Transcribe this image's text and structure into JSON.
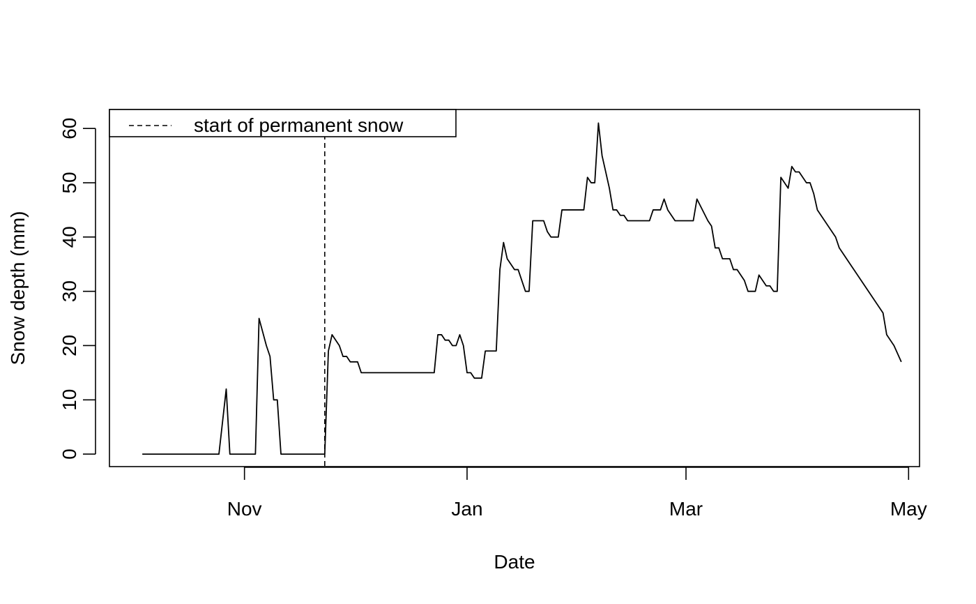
{
  "chart_data": {
    "type": "line",
    "title": "",
    "xlabel": "Date",
    "ylabel": "Snow depth (mm)",
    "ylim": [
      -2.3,
      63.5
    ],
    "xlim": [
      "2015-09-25",
      "2016-05-04"
    ],
    "x_ticks": [
      {
        "date": "2015-11-01",
        "label": "Nov"
      },
      {
        "date": "2016-01-01",
        "label": "Jan"
      },
      {
        "date": "2016-03-01",
        "label": "Mar"
      },
      {
        "date": "2016-05-01",
        "label": "May"
      }
    ],
    "y_ticks": [
      0,
      10,
      20,
      30,
      40,
      50,
      60
    ],
    "grid": false,
    "legend": {
      "position": "top-left",
      "entries": [
        {
          "label": "start of permanent snow",
          "style": "dashed"
        }
      ]
    },
    "vline": {
      "date": "2015-11-23",
      "label": "start of permanent snow"
    },
    "series": [
      {
        "color": "#000000",
        "points": [
          [
            "2015-10-04",
            0
          ],
          [
            "2015-10-25",
            0
          ],
          [
            "2015-10-27",
            12
          ],
          [
            "2015-10-28",
            0
          ],
          [
            "2015-11-04",
            0
          ],
          [
            "2015-11-05",
            25
          ],
          [
            "2015-11-07",
            20
          ],
          [
            "2015-11-08",
            18
          ],
          [
            "2015-11-09",
            10
          ],
          [
            "2015-11-10",
            10
          ],
          [
            "2015-11-11",
            0
          ],
          [
            "2015-11-23",
            0
          ],
          [
            "2015-11-24",
            19
          ],
          [
            "2015-11-25",
            22
          ],
          [
            "2015-11-27",
            20
          ],
          [
            "2015-11-28",
            18
          ],
          [
            "2015-11-29",
            18
          ],
          [
            "2015-11-30",
            17
          ],
          [
            "2015-12-02",
            17
          ],
          [
            "2015-12-03",
            15
          ],
          [
            "2015-12-23",
            15
          ],
          [
            "2015-12-24",
            22
          ],
          [
            "2015-12-25",
            22
          ],
          [
            "2015-12-26",
            21
          ],
          [
            "2015-12-27",
            21
          ],
          [
            "2015-12-28",
            20
          ],
          [
            "2015-12-29",
            20
          ],
          [
            "2015-12-30",
            22
          ],
          [
            "2015-12-31",
            20
          ],
          [
            "2016-01-01",
            15
          ],
          [
            "2016-01-02",
            15
          ],
          [
            "2016-01-03",
            14
          ],
          [
            "2016-01-05",
            14
          ],
          [
            "2016-01-06",
            19
          ],
          [
            "2016-01-09",
            19
          ],
          [
            "2016-01-10",
            34
          ],
          [
            "2016-01-11",
            39
          ],
          [
            "2016-01-12",
            36
          ],
          [
            "2016-01-14",
            34
          ],
          [
            "2016-01-15",
            34
          ],
          [
            "2016-01-17",
            30
          ],
          [
            "2016-01-18",
            30
          ],
          [
            "2016-01-19",
            43
          ],
          [
            "2016-01-22",
            43
          ],
          [
            "2016-01-23",
            41
          ],
          [
            "2016-01-24",
            40
          ],
          [
            "2016-01-26",
            40
          ],
          [
            "2016-01-27",
            45
          ],
          [
            "2016-02-02",
            45
          ],
          [
            "2016-02-03",
            51
          ],
          [
            "2016-02-04",
            50
          ],
          [
            "2016-02-05",
            50
          ],
          [
            "2016-02-06",
            61
          ],
          [
            "2016-02-07",
            55
          ],
          [
            "2016-02-08",
            52
          ],
          [
            "2016-02-09",
            49
          ],
          [
            "2016-02-10",
            45
          ],
          [
            "2016-02-11",
            45
          ],
          [
            "2016-02-12",
            44
          ],
          [
            "2016-02-13",
            44
          ],
          [
            "2016-02-14",
            43
          ],
          [
            "2016-02-20",
            43
          ],
          [
            "2016-02-21",
            45
          ],
          [
            "2016-02-22",
            45
          ],
          [
            "2016-02-23",
            45
          ],
          [
            "2016-02-24",
            47
          ],
          [
            "2016-02-25",
            45
          ],
          [
            "2016-02-27",
            43
          ],
          [
            "2016-02-29",
            43
          ],
          [
            "2016-03-03",
            43
          ],
          [
            "2016-03-04",
            47
          ],
          [
            "2016-03-07",
            43
          ],
          [
            "2016-03-08",
            42
          ],
          [
            "2016-03-09",
            38
          ],
          [
            "2016-03-10",
            38
          ],
          [
            "2016-03-11",
            36
          ],
          [
            "2016-03-13",
            36
          ],
          [
            "2016-03-14",
            34
          ],
          [
            "2016-03-15",
            34
          ],
          [
            "2016-03-17",
            32
          ],
          [
            "2016-03-18",
            30
          ],
          [
            "2016-03-20",
            30
          ],
          [
            "2016-03-21",
            33
          ],
          [
            "2016-03-22",
            32
          ],
          [
            "2016-03-23",
            31
          ],
          [
            "2016-03-24",
            31
          ],
          [
            "2016-03-25",
            30
          ],
          [
            "2016-03-26",
            30
          ],
          [
            "2016-03-27",
            51
          ],
          [
            "2016-03-29",
            49
          ],
          [
            "2016-03-30",
            53
          ],
          [
            "2016-03-31",
            52
          ],
          [
            "2016-04-01",
            52
          ],
          [
            "2016-04-03",
            50
          ],
          [
            "2016-04-04",
            50
          ],
          [
            "2016-04-05",
            48
          ],
          [
            "2016-04-06",
            45
          ],
          [
            "2016-04-11",
            40
          ],
          [
            "2016-04-12",
            38
          ],
          [
            "2016-04-16",
            34
          ],
          [
            "2016-04-20",
            30
          ],
          [
            "2016-04-24",
            26
          ],
          [
            "2016-04-25",
            22
          ],
          [
            "2016-04-27",
            20
          ],
          [
            "2016-04-29",
            17
          ]
        ]
      }
    ]
  }
}
